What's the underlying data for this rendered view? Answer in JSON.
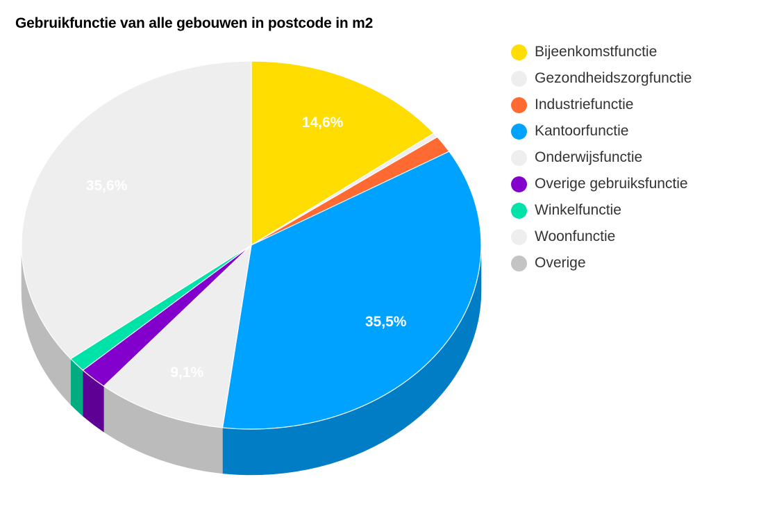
{
  "chart_data": {
    "type": "pie",
    "title": "Gebruikfunctie van alle gebouwen in postcode in m2",
    "legend_position": "right",
    "three_d": true,
    "slices": [
      {
        "name": "Bijeenkomstfunctie",
        "value": 14.6,
        "label": "14,6%",
        "color": "#FFDD00",
        "side_color": "#D9BC00"
      },
      {
        "name": "Gezondheidszorgfunctie",
        "value": 0.4,
        "label": "",
        "color": "#EEEEEE",
        "side_color": "#BBBBBB"
      },
      {
        "name": "Industriefunctie",
        "value": 1.5,
        "label": "",
        "color": "#FF6A33",
        "side_color": "#D4521F"
      },
      {
        "name": "Kantoorfunctie",
        "value": 35.5,
        "label": "35,5%",
        "color": "#00A2FF",
        "side_color": "#007DC4"
      },
      {
        "name": "Onderwijsfunctie",
        "value": 9.1,
        "label": "9,1%",
        "color": "#EEEEEE",
        "side_color": "#BBBBBB"
      },
      {
        "name": "Overige gebruiksfunctie",
        "value": 2.0,
        "label": "",
        "color": "#8300CC",
        "side_color": "#5E0094"
      },
      {
        "name": "Winkelfunctie",
        "value": 1.3,
        "label": "",
        "color": "#00E3A8",
        "side_color": "#00AC80"
      },
      {
        "name": "Woonfunctie",
        "value": 35.6,
        "label": "35,6%",
        "color": "#EEEEEE",
        "side_color": "#BBBBBB"
      },
      {
        "name": "Overige",
        "value": 0.0,
        "label": "",
        "color": "#C4C4C4",
        "side_color": "#A0A0A0"
      }
    ]
  }
}
